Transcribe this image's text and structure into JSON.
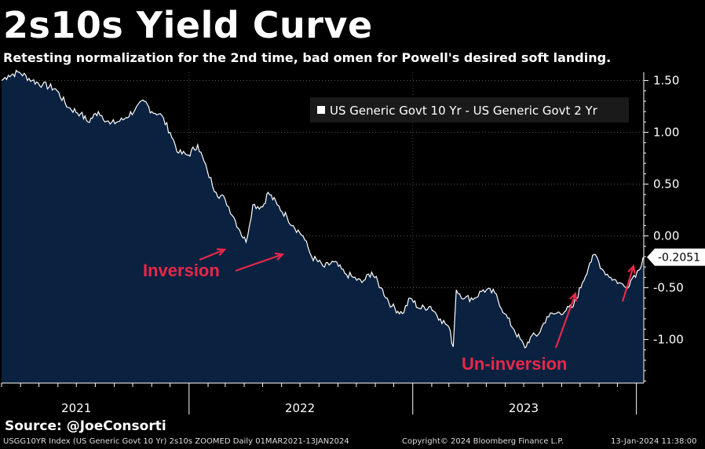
{
  "header": {
    "title": "2s10s Yield Curve",
    "subtitle": "Retesting normalization for the 2nd time, bad omen for Powell's desired soft landing."
  },
  "source": "Source: @JoeConsorti",
  "footer": {
    "left": "USGG10YR Index (US Generic Govt 10 Yr) 2s10s ZOOMED  Daily 01MAR2021-13JAN2024",
    "middle": "Copyright© 2024 Bloomberg Finance L.P.",
    "right": "13-Jan-2024 11:38:00"
  },
  "colors": {
    "area_fill": "#0b2140",
    "line": "#ffffff",
    "annotation": "#e8284a",
    "background": "#000000"
  },
  "chart_data": {
    "type": "area",
    "title": "2s10s Yield Curve",
    "subtitle": "Retesting normalization for the 2nd time, bad omen for Powell's desired soft landing.",
    "legend_position": "top-right",
    "grid": true,
    "x_range": [
      "2021-03-01",
      "2024-01-13"
    ],
    "ylim": [
      -1.42,
      1.58
    ],
    "y_ticks": [
      1.5,
      1.0,
      0.5,
      0.0,
      -0.5,
      -1.0
    ],
    "y_tick_labels": [
      "1.50",
      "1.00",
      "0.50",
      "0.00",
      "-0.50",
      "-1.00"
    ],
    "year_labels": [
      {
        "label": "2021",
        "at": "2021-07-01"
      },
      {
        "label": "2022",
        "at": "2022-07-01"
      },
      {
        "label": "2023",
        "at": "2023-07-01"
      }
    ],
    "last_value_label": "-0.2051",
    "series": [
      {
        "name": "US Generic Govt 10 Yr - US Generic Govt 2 Yr",
        "points": [
          [
            "2021-03-01",
            1.5
          ],
          [
            "2021-03-12",
            1.55
          ],
          [
            "2021-03-30",
            1.58
          ],
          [
            "2021-04-20",
            1.5
          ],
          [
            "2021-05-07",
            1.46
          ],
          [
            "2021-05-28",
            1.42
          ],
          [
            "2021-06-18",
            1.24
          ],
          [
            "2021-07-08",
            1.18
          ],
          [
            "2021-07-20",
            1.1
          ],
          [
            "2021-08-06",
            1.2
          ],
          [
            "2021-08-25",
            1.08
          ],
          [
            "2021-09-15",
            1.12
          ],
          [
            "2021-10-05",
            1.22
          ],
          [
            "2021-10-20",
            1.3
          ],
          [
            "2021-11-01",
            1.2
          ],
          [
            "2021-11-15",
            1.18
          ],
          [
            "2021-12-01",
            1.0
          ],
          [
            "2021-12-15",
            0.8
          ],
          [
            "2021-12-31",
            0.78
          ],
          [
            "2022-01-15",
            0.88
          ],
          [
            "2022-01-31",
            0.62
          ],
          [
            "2022-02-14",
            0.42
          ],
          [
            "2022-03-01",
            0.35
          ],
          [
            "2022-03-15",
            0.18
          ],
          [
            "2022-03-25",
            0.05
          ],
          [
            "2022-04-04",
            -0.06
          ],
          [
            "2022-04-15",
            0.3
          ],
          [
            "2022-05-01",
            0.28
          ],
          [
            "2022-05-10",
            0.42
          ],
          [
            "2022-05-25",
            0.3
          ],
          [
            "2022-06-10",
            0.18
          ],
          [
            "2022-06-20",
            0.1
          ],
          [
            "2022-07-06",
            0.0
          ],
          [
            "2022-07-20",
            -0.2
          ],
          [
            "2022-08-10",
            -0.3
          ],
          [
            "2022-08-25",
            -0.25
          ],
          [
            "2022-09-12",
            -0.36
          ],
          [
            "2022-09-26",
            -0.4
          ],
          [
            "2022-10-10",
            -0.45
          ],
          [
            "2022-10-26",
            -0.35
          ],
          [
            "2022-11-10",
            -0.5
          ],
          [
            "2022-11-28",
            -0.68
          ],
          [
            "2022-12-15",
            -0.75
          ],
          [
            "2022-12-28",
            -0.6
          ],
          [
            "2023-01-12",
            -0.7
          ],
          [
            "2023-01-30",
            -0.68
          ],
          [
            "2023-02-15",
            -0.8
          ],
          [
            "2023-03-01",
            -0.88
          ],
          [
            "2023-03-08",
            -1.07
          ],
          [
            "2023-03-13",
            -0.52
          ],
          [
            "2023-03-27",
            -0.6
          ],
          [
            "2023-04-12",
            -0.6
          ],
          [
            "2023-04-26",
            -0.52
          ],
          [
            "2023-05-15",
            -0.55
          ],
          [
            "2023-05-31",
            -0.75
          ],
          [
            "2023-06-15",
            -0.9
          ],
          [
            "2023-07-03",
            -1.08
          ],
          [
            "2023-07-12",
            -0.98
          ],
          [
            "2023-07-25",
            -0.95
          ],
          [
            "2023-08-08",
            -0.78
          ],
          [
            "2023-08-22",
            -0.75
          ],
          [
            "2023-09-08",
            -0.72
          ],
          [
            "2023-09-20",
            -0.68
          ],
          [
            "2023-10-05",
            -0.45
          ],
          [
            "2023-10-17",
            -0.26
          ],
          [
            "2023-10-26",
            -0.18
          ],
          [
            "2023-11-06",
            -0.32
          ],
          [
            "2023-11-20",
            -0.4
          ],
          [
            "2023-12-04",
            -0.45
          ],
          [
            "2023-12-15",
            -0.5
          ],
          [
            "2023-12-28",
            -0.38
          ],
          [
            "2024-01-05",
            -0.33
          ],
          [
            "2024-01-12",
            -0.2051
          ]
        ]
      }
    ],
    "annotations": [
      {
        "text": "Inversion",
        "arrows": [
          [
            "2022-03-01",
            -0.1
          ],
          [
            "2022-04-30",
            -0.08
          ]
        ]
      },
      {
        "text": "Un-inversion",
        "arrows": [
          [
            "2023-09-01",
            -0.45
          ],
          [
            "2024-01-12",
            -0.25
          ]
        ]
      }
    ]
  }
}
